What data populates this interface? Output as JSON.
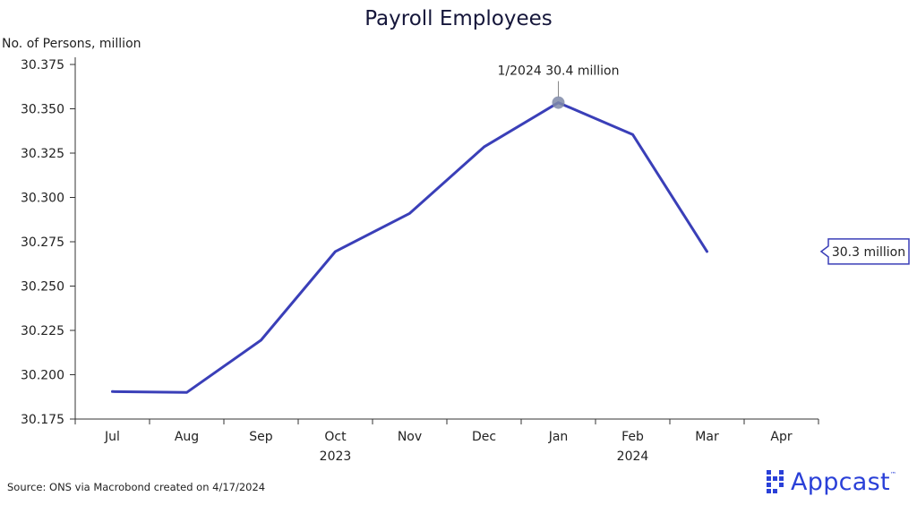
{
  "chart_data": {
    "type": "line",
    "title": "Payroll Employees",
    "ylabel": "No. of Persons, million",
    "categories": [
      "Jul",
      "Aug",
      "Sep",
      "Oct",
      "Nov",
      "Dec",
      "Jan",
      "Feb",
      "Mar",
      "Apr"
    ],
    "year_labels": [
      {
        "label": "2023",
        "center_category": "Oct"
      },
      {
        "label": "2024",
        "center_category": "Feb"
      }
    ],
    "series": [
      {
        "values": [
          30.1905,
          30.19,
          30.2195,
          30.2695,
          30.291,
          30.3285,
          30.3535,
          30.3355,
          30.2695,
          null
        ]
      }
    ],
    "ylim": [
      30.175,
      30.375
    ],
    "yticks": [
      "30.175",
      "30.200",
      "30.225",
      "30.250",
      "30.275",
      "30.300",
      "30.325",
      "30.350",
      "30.375"
    ],
    "grid": false,
    "line_color": "#3a3fb8",
    "marker_color": "#7f8aa8",
    "peak_annotation": {
      "category": "Jan",
      "text": "1/2024 30.4 million"
    },
    "end_label": {
      "text": "30.3 million",
      "value": 30.2695
    }
  },
  "footer": {
    "source": "Source: ONS via Macrobond created on 4/17/2024",
    "logo_text": "Appcast",
    "logo_tm": "™"
  }
}
